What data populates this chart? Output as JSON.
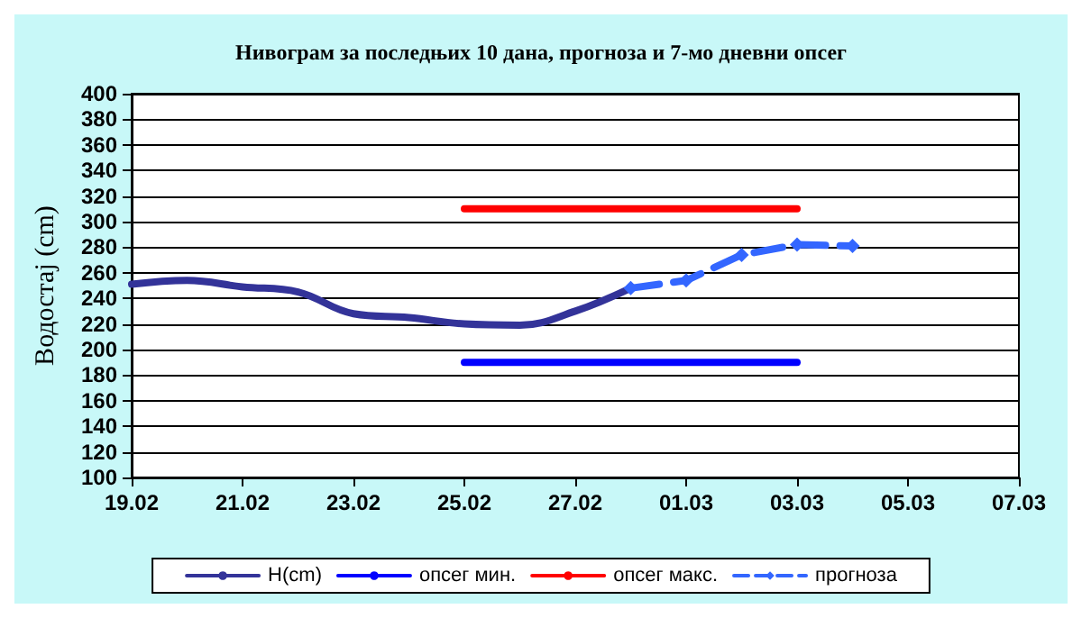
{
  "chart_data": {
    "type": "line",
    "title": "Нивограм за последњих 10 дана, прогноза и 7-мо дневни опсег",
    "ylabel": "Водостај (cm)",
    "series": [
      {
        "name": "H(cm)",
        "color": "#333399",
        "x": [
          "--02-19",
          "--02-20",
          "--02-21",
          "--02-22",
          "--02-23",
          "--02-24",
          "--02-25",
          "--02-26",
          "--02-27",
          "--02-28"
        ],
        "values": [
          251,
          254,
          249,
          245,
          228,
          225,
          220,
          219,
          230,
          248
        ],
        "marker": "none",
        "line_style": "solid"
      },
      {
        "name": "опсег мин.",
        "color": "#0000ff",
        "x": [
          "--02-25",
          "--03-03"
        ],
        "values": [
          190,
          190
        ],
        "marker": "none",
        "line_style": "solid"
      },
      {
        "name": "опсег макс.",
        "color": "#ff0000",
        "x": [
          "--02-25",
          "--03-03"
        ],
        "values": [
          310,
          310
        ],
        "marker": "none",
        "line_style": "solid"
      },
      {
        "name": "прогноза",
        "color": "#3366ff",
        "x": [
          "--02-28",
          "--03-01",
          "--03-02",
          "--03-03",
          "--03-04"
        ],
        "values": [
          248,
          254,
          274,
          282,
          281
        ],
        "marker": "diamond",
        "line_style": "dashed"
      }
    ],
    "xlim": [
      "--02-19",
      "--03-07"
    ],
    "xticks": [
      {
        "value": "--02-19",
        "label": "19.02"
      },
      {
        "value": "--02-21",
        "label": "21.02"
      },
      {
        "value": "--02-23",
        "label": "23.02"
      },
      {
        "value": "--02-25",
        "label": "25.02"
      },
      {
        "value": "--02-27",
        "label": "27.02"
      },
      {
        "value": "--03-01",
        "label": "01.03"
      },
      {
        "value": "--03-03",
        "label": "03.03"
      },
      {
        "value": "--03-05",
        "label": "05.03"
      },
      {
        "value": "--03-07",
        "label": "07.03"
      }
    ],
    "ylim": [
      100,
      400
    ],
    "yticks": [
      100,
      120,
      140,
      160,
      180,
      200,
      220,
      240,
      260,
      280,
      300,
      320,
      340,
      360,
      380,
      400
    ],
    "grid": "y",
    "legend": "bottom"
  }
}
